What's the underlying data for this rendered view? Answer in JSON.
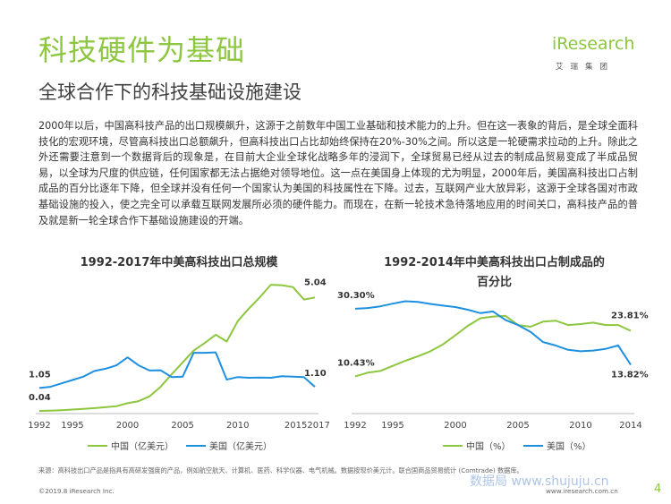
{
  "header": {
    "title": "科技硬件为基础",
    "subtitle": "全球合作下的科技基础设施建设"
  },
  "brand": {
    "logo_text": "iResearch",
    "logo_sub": "艾瑞集团",
    "accent": "#8dc63f"
  },
  "body_text": "2000年以后，中国高科技产品的出口规模飙升，这源于之前数年中国工业基础和技术能力的上升。但在这一表象的背后，是全球全面科技化的宏观环境，尽管高科技出口总额飙升，但高科技出口占比却始终保持在20%-30%之间。所以这是一轮硬需求拉动的上升。除此之外还需要注意到一个数据背后的现象是，在目前大企业全球化战略多年的浸润下，全球贸易已经从过去的制成品贸易变成了半成品贸易，以全球为尺度的供应链，任何国家都无法占据绝对领导地位。这一点在美国身上体现的尤为明显，2000年后，美国高科技出口占制成品的百分比逐年下降，但全球并没有任何一个国家认为美国的科技属性在下降。过去，互联网产业大放异彩，这源于全球各国对市政基础设施的投入，使之完全可以承载互联网发展所必须的硬件能力。而现在，在新一轮技术急待落地应用的时间关口，高科技产品的普及就是新一轮全球合作下基础设施建设的开端。",
  "chart_data": [
    {
      "type": "line",
      "title": "1992-2017年中美高科技出口总规模",
      "x": [
        1992,
        1993,
        1994,
        1995,
        1996,
        1997,
        1998,
        1999,
        2000,
        2001,
        2002,
        2003,
        2004,
        2005,
        2006,
        2007,
        2008,
        2009,
        2010,
        2011,
        2012,
        2013,
        2014,
        2015,
        2016,
        2017
      ],
      "x_tick_labels": [
        "1992",
        "1995",
        "2000",
        "2005",
        "2010",
        "20152017"
      ],
      "series": [
        {
          "name": "中国（亿美元）",
          "color": "#8dc63f",
          "values": [
            0.04,
            0.05,
            0.07,
            0.1,
            0.13,
            0.16,
            0.2,
            0.25,
            0.38,
            0.47,
            0.68,
            1.1,
            1.65,
            2.18,
            2.7,
            3.03,
            3.4,
            3.1,
            4.0,
            4.55,
            5.05,
            5.6,
            5.58,
            5.5,
            4.95,
            5.04
          ]
        },
        {
          "name": "美国（亿美元）",
          "color": "#1e90e0",
          "values": [
            1.05,
            1.1,
            1.25,
            1.4,
            1.55,
            1.8,
            1.9,
            2.05,
            2.4,
            2.05,
            1.82,
            1.83,
            1.53,
            1.55,
            2.6,
            2.6,
            2.62,
            1.42,
            1.53,
            1.5,
            1.51,
            1.5,
            1.57,
            1.55,
            1.53,
            1.1
          ]
        }
      ],
      "annotations": [
        {
          "series": "美国（亿美元）",
          "x": 1992,
          "label": "1.05"
        },
        {
          "series": "中国（亿美元）",
          "x": 1992,
          "label": "0.04"
        },
        {
          "series": "中国（亿美元）",
          "x": 2017,
          "label": "5.04"
        },
        {
          "series": "美国（亿美元）",
          "x": 2017,
          "label": "1.10"
        }
      ],
      "ylim": [
        0,
        6
      ],
      "xlabel": "",
      "ylabel": "",
      "grid": false,
      "legend": "bottom"
    },
    {
      "type": "line",
      "title": "1992-2014年中美高科技出口占制成品的百分比",
      "x": [
        1992,
        1993,
        1994,
        1995,
        1996,
        1997,
        1998,
        1999,
        2000,
        2001,
        2002,
        2003,
        2004,
        2005,
        2006,
        2007,
        2008,
        2009,
        2010,
        2011,
        2012,
        2013,
        2014
      ],
      "x_tick_labels": [
        "1992",
        "1995",
        "2000",
        "2005",
        "2010",
        "2014"
      ],
      "series": [
        {
          "name": "中国（%）",
          "color": "#8dc63f",
          "values": [
            10.43,
            11.5,
            12.0,
            13.5,
            15.0,
            16.3,
            17.8,
            19.8,
            22.5,
            25.3,
            27.5,
            28.0,
            28.2,
            25.5,
            25.0,
            26.5,
            26.8,
            25.5,
            25.8,
            26.2,
            25.5,
            25.5,
            23.81
          ]
        },
        {
          "name": "美国（%）",
          "color": "#1e90e0",
          "values": [
            30.3,
            30.5,
            31.0,
            31.8,
            32.5,
            32.3,
            31.7,
            31.2,
            30.8,
            30.0,
            29.0,
            29.5,
            27.0,
            25.5,
            23.5,
            20.5,
            19.5,
            18.2,
            17.8,
            18.0,
            18.5,
            19.5,
            13.82
          ]
        }
      ],
      "annotations": [
        {
          "series": "美国（%）",
          "x": 1992,
          "label": "30.30%"
        },
        {
          "series": "中国（%）",
          "x": 1992,
          "label": "10.43%"
        },
        {
          "series": "中国（%）",
          "x": 2014,
          "label": "23.81%"
        },
        {
          "series": "美国（%）",
          "x": 2014,
          "label": "13.82%"
        }
      ],
      "ylim": [
        0,
        40
      ],
      "xlabel": "",
      "ylabel": "",
      "grid": false,
      "legend": "bottom"
    }
  ],
  "charts_text": {
    "c1_title": "1992-2017年中美高科技出口总规模",
    "c2_title_line1": "1992-2014年中美高科技出口占制成品的",
    "c2_title_line2": "百分比"
  },
  "footer": {
    "source": "来源：高科技出口产品是指具有高研发强度的产品，例如航空航天、计算机、医药、科学仪器、电气机械。数据按现价美元计。联合国商品贸易统计 (Comtrade) 数据库。",
    "copyright": "©2019.8 iResearch Inc.",
    "url": "www.iresearch.com.cn",
    "page_number": "4",
    "watermark": "数据局 www.shujuju.cn"
  }
}
